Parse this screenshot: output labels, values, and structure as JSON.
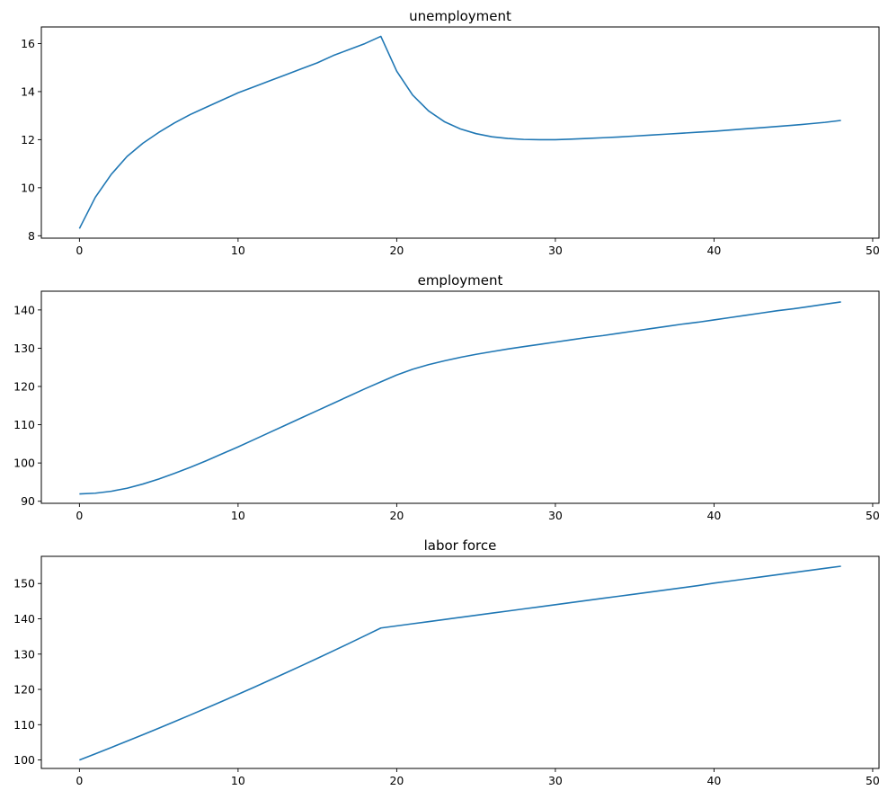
{
  "chart_data": [
    {
      "type": "line",
      "title": "unemployment",
      "xlim": [
        -2.4,
        50.4
      ],
      "ylim": [
        7.9,
        16.69
      ],
      "xticks": [
        0,
        10,
        20,
        30,
        40,
        50
      ],
      "yticks": [
        8,
        10,
        12,
        14,
        16
      ],
      "grid": false,
      "color": "#1f77b4",
      "x": [
        0,
        1,
        2,
        3,
        4,
        5,
        6,
        7,
        8,
        9,
        10,
        11,
        12,
        13,
        14,
        15,
        16,
        17,
        18,
        19,
        20,
        21,
        22,
        23,
        24,
        25,
        26,
        27,
        28,
        29,
        30,
        31,
        32,
        33,
        34,
        35,
        36,
        37,
        38,
        39,
        40,
        41,
        42,
        43,
        44,
        45,
        46,
        47,
        48
      ],
      "y": [
        8.3,
        9.6,
        10.55,
        11.3,
        11.85,
        12.3,
        12.7,
        13.05,
        13.35,
        13.65,
        13.95,
        14.2,
        14.45,
        14.7,
        14.95,
        15.2,
        15.5,
        15.75,
        16.0,
        16.3,
        14.85,
        13.86,
        13.2,
        12.75,
        12.45,
        12.25,
        12.12,
        12.05,
        12.01,
        12.0,
        12.0,
        12.02,
        12.05,
        12.08,
        12.11,
        12.15,
        12.19,
        12.23,
        12.27,
        12.31,
        12.35,
        12.4,
        12.45,
        12.5,
        12.55,
        12.6,
        12.66,
        12.72,
        12.8
      ]
    },
    {
      "type": "line",
      "title": "employment",
      "xlim": [
        -2.4,
        50.4
      ],
      "ylim": [
        89.46,
        144.9
      ],
      "xticks": [
        0,
        10,
        20,
        30,
        40,
        50
      ],
      "yticks": [
        90,
        100,
        110,
        120,
        130,
        140
      ],
      "grid": false,
      "color": "#1f77b4",
      "x": [
        0,
        1,
        2,
        3,
        4,
        5,
        6,
        7,
        8,
        9,
        10,
        11,
        12,
        13,
        14,
        15,
        16,
        17,
        18,
        19,
        20,
        21,
        22,
        23,
        24,
        25,
        26,
        27,
        28,
        29,
        30,
        31,
        32,
        33,
        34,
        35,
        36,
        37,
        38,
        39,
        40,
        41,
        42,
        43,
        44,
        45,
        46,
        47,
        48
      ],
      "y": [
        91.9,
        92.1,
        92.6,
        93.4,
        94.5,
        95.8,
        97.3,
        98.9,
        100.6,
        102.4,
        104.2,
        106.1,
        108.0,
        109.9,
        111.8,
        113.7,
        115.6,
        117.5,
        119.4,
        121.2,
        123.0,
        124.5,
        125.7,
        126.7,
        127.6,
        128.4,
        129.1,
        129.8,
        130.4,
        131.0,
        131.6,
        132.2,
        132.8,
        133.3,
        133.9,
        134.5,
        135.1,
        135.7,
        136.3,
        136.8,
        137.4,
        138.0,
        138.6,
        139.2,
        139.8,
        140.3,
        140.9,
        141.5,
        142.1
      ]
    },
    {
      "type": "line",
      "title": "labor force",
      "xlim": [
        -2.4,
        50.4
      ],
      "ylim": [
        97.6,
        157.7
      ],
      "xticks": [
        0,
        10,
        20,
        30,
        40,
        50
      ],
      "yticks": [
        100,
        110,
        120,
        130,
        140,
        150
      ],
      "grid": false,
      "color": "#1f77b4",
      "x": [
        0,
        1,
        2,
        3,
        4,
        5,
        6,
        7,
        8,
        9,
        10,
        11,
        12,
        13,
        14,
        15,
        16,
        17,
        18,
        19,
        20,
        21,
        22,
        23,
        24,
        25,
        26,
        27,
        28,
        29,
        30,
        31,
        32,
        33,
        34,
        35,
        36,
        37,
        38,
        39,
        40,
        41,
        42,
        43,
        44,
        45,
        46,
        47,
        48
      ],
      "y": [
        100,
        101.75,
        103.53,
        105.33,
        107.15,
        109.0,
        110.87,
        112.77,
        114.69,
        116.63,
        118.6,
        120.59,
        122.61,
        124.65,
        126.71,
        128.8,
        130.91,
        133.05,
        135.21,
        137.39,
        138.0,
        138.6,
        139.2,
        139.8,
        140.4,
        141.0,
        141.6,
        142.2,
        142.8,
        143.4,
        144.0,
        144.6,
        145.2,
        145.8,
        146.4,
        147.0,
        147.6,
        148.2,
        148.8,
        149.4,
        150.1,
        150.7,
        151.3,
        151.9,
        152.5,
        153.1,
        153.7,
        154.3,
        154.9
      ]
    }
  ]
}
